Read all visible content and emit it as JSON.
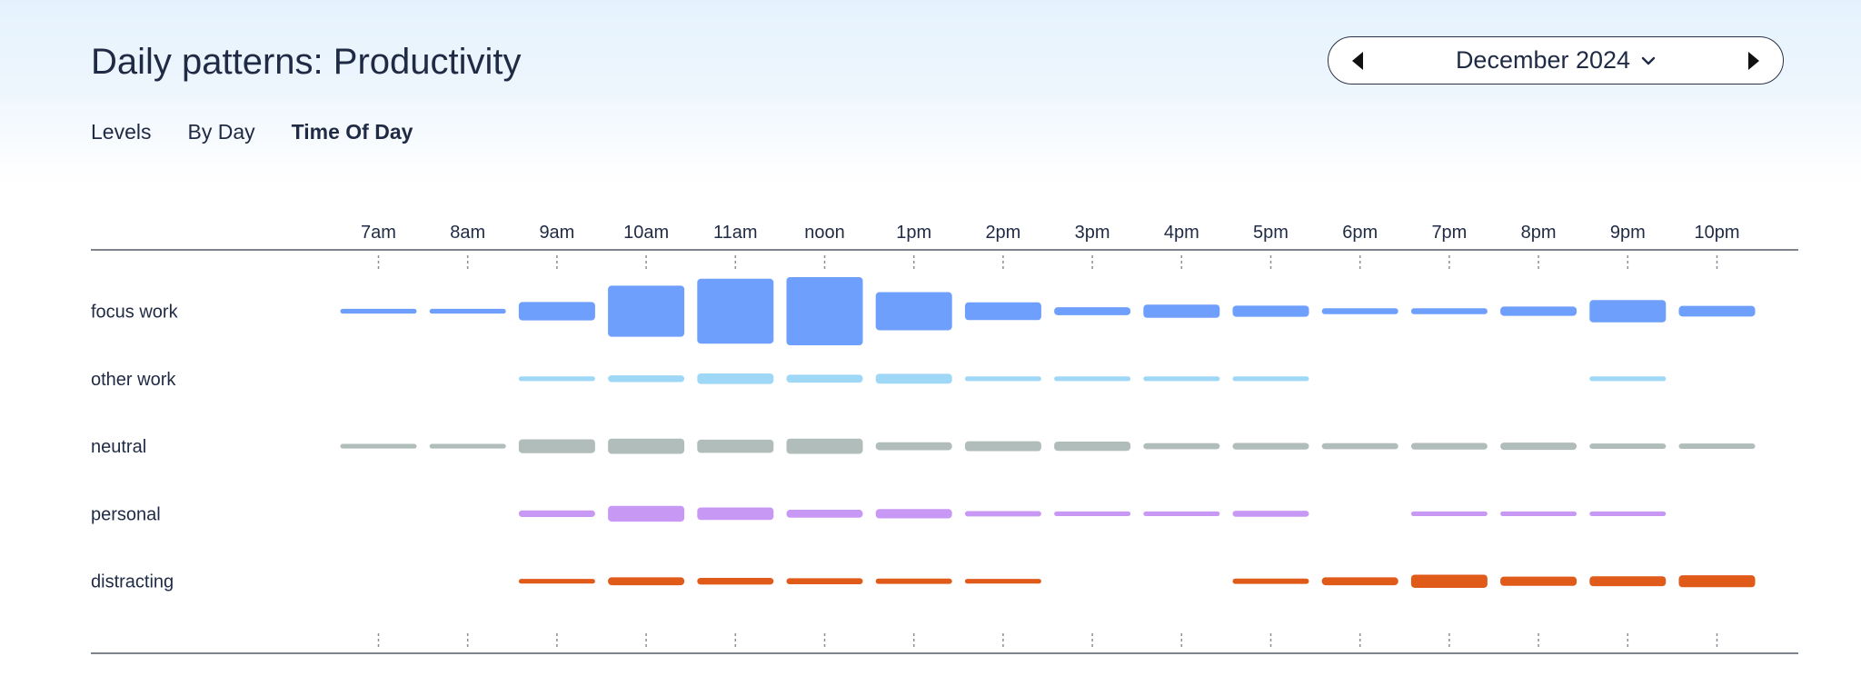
{
  "page": {
    "title": "Daily patterns: Productivity"
  },
  "month_picker": {
    "label": "December 2024",
    "prev_icon": "caret-left-icon",
    "next_icon": "caret-right-icon",
    "dropdown_icon": "chevron-down-icon"
  },
  "tabs": [
    {
      "label": "Levels",
      "active": false
    },
    {
      "label": "By Day",
      "active": false
    },
    {
      "label": "Time Of Day",
      "active": true
    }
  ],
  "chart_data": {
    "type": "heatmap",
    "title": "",
    "x": [
      "7am",
      "8am",
      "9am",
      "10am",
      "11am",
      "noon",
      "1pm",
      "2pm",
      "3pm",
      "4pm",
      "5pm",
      "6pm",
      "7pm",
      "8pm",
      "9pm",
      "10pm"
    ],
    "scale_max": 10,
    "series": [
      {
        "name": "focus work",
        "color": "#6e9ffc",
        "values": [
          0.3,
          0.3,
          2.4,
          7.4,
          9.5,
          10,
          5.4,
          2.3,
          0.8,
          1.6,
          1.3,
          0.5,
          0.5,
          1.0,
          3.0,
          1.2
        ]
      },
      {
        "name": "other work",
        "color": "#9fd8f7",
        "values": [
          0,
          0,
          0.3,
          0.6,
          1.2,
          0.8,
          1.1,
          0.3,
          0.3,
          0.3,
          0.3,
          0,
          0,
          0,
          0.3,
          0
        ]
      },
      {
        "name": "neutral",
        "color": "#b0bdbb",
        "values": [
          0.3,
          0.3,
          1.7,
          1.9,
          1.6,
          1.9,
          0.8,
          1.1,
          1.0,
          0.5,
          0.6,
          0.5,
          0.6,
          0.7,
          0.4,
          0.4
        ]
      },
      {
        "name": "personal",
        "color": "#c899f4",
        "values": [
          0,
          0,
          0.6,
          2.0,
          1.5,
          0.8,
          1.0,
          0.4,
          0.3,
          0.3,
          0.5,
          0,
          0.3,
          0.3,
          0.3,
          0
        ]
      },
      {
        "name": "distracting",
        "color": "#e05a1a",
        "values": [
          0,
          0,
          0.3,
          0.8,
          0.6,
          0.5,
          0.4,
          0.3,
          0,
          0,
          0.4,
          0.8,
          1.6,
          1.0,
          1.1,
          1.4
        ]
      }
    ]
  },
  "colors": {
    "text": "#1f2a44",
    "axis_line": "#555a66",
    "tick": "#8a8f99"
  }
}
